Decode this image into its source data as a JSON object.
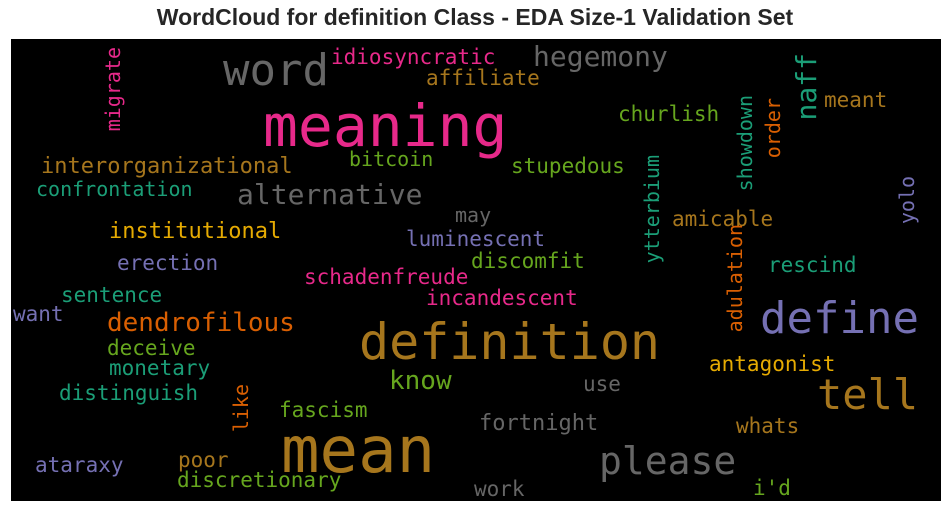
{
  "chart_data": {
    "type": "wordcloud",
    "title": "WordCloud for definition Class - EDA Size-1 Validation Set",
    "background": "#000000",
    "palette": [
      "#e7298a",
      "#a6761d",
      "#666666",
      "#7570b3",
      "#1b9e77",
      "#66a61e",
      "#e6ab02",
      "#d95f02"
    ],
    "words": [
      {
        "text": "meaning",
        "color": "#e7298a",
        "orientation": "horizontal"
      },
      {
        "text": "mean",
        "color": "#a6761d",
        "orientation": "horizontal"
      },
      {
        "text": "definition",
        "color": "#a6761d",
        "orientation": "horizontal"
      },
      {
        "text": "word",
        "color": "#666666",
        "orientation": "horizontal"
      },
      {
        "text": "define",
        "color": "#7570b3",
        "orientation": "horizontal"
      },
      {
        "text": "tell",
        "color": "#a6761d",
        "orientation": "horizontal"
      },
      {
        "text": "please",
        "color": "#666666",
        "orientation": "horizontal"
      },
      {
        "text": "hegemony",
        "color": "#666666",
        "orientation": "horizontal"
      },
      {
        "text": "alternative",
        "color": "#666666",
        "orientation": "horizontal"
      },
      {
        "text": "dendrofilous",
        "color": "#d95f02",
        "orientation": "horizontal"
      },
      {
        "text": "know",
        "color": "#66a61e",
        "orientation": "horizontal"
      },
      {
        "text": "naff",
        "color": "#1b9e77",
        "orientation": "vertical"
      },
      {
        "text": "idiosyncratic",
        "color": "#e7298a",
        "orientation": "horizontal"
      },
      {
        "text": "affiliate",
        "color": "#a6761d",
        "orientation": "horizontal"
      },
      {
        "text": "migrate",
        "color": "#e7298a",
        "orientation": "vertical"
      },
      {
        "text": "churlish",
        "color": "#66a61e",
        "orientation": "horizontal"
      },
      {
        "text": "showdown",
        "color": "#1b9e77",
        "orientation": "vertical"
      },
      {
        "text": "meant",
        "color": "#a6761d",
        "orientation": "horizontal"
      },
      {
        "text": "order",
        "color": "#d95f02",
        "orientation": "vertical"
      },
      {
        "text": "interorganizational",
        "color": "#a6761d",
        "orientation": "horizontal"
      },
      {
        "text": "bitcoin",
        "color": "#66a61e",
        "orientation": "horizontal"
      },
      {
        "text": "stupedous",
        "color": "#66a61e",
        "orientation": "horizontal"
      },
      {
        "text": "confrontation",
        "color": "#1b9e77",
        "orientation": "horizontal"
      },
      {
        "text": "ytterbium",
        "color": "#1b9e77",
        "orientation": "vertical"
      },
      {
        "text": "yolo",
        "color": "#7570b3",
        "orientation": "vertical"
      },
      {
        "text": "may",
        "color": "#666666",
        "orientation": "horizontal"
      },
      {
        "text": "amicable",
        "color": "#a6761d",
        "orientation": "horizontal"
      },
      {
        "text": "institutional",
        "color": "#e6ab02",
        "orientation": "horizontal"
      },
      {
        "text": "luminescent",
        "color": "#7570b3",
        "orientation": "horizontal"
      },
      {
        "text": "adulation",
        "color": "#d95f02",
        "orientation": "vertical"
      },
      {
        "text": "erection",
        "color": "#7570b3",
        "orientation": "horizontal"
      },
      {
        "text": "discomfit",
        "color": "#66a61e",
        "orientation": "horizontal"
      },
      {
        "text": "rescind",
        "color": "#1b9e77",
        "orientation": "horizontal"
      },
      {
        "text": "schadenfreude",
        "color": "#e7298a",
        "orientation": "horizontal"
      },
      {
        "text": "sentence",
        "color": "#1b9e77",
        "orientation": "horizontal"
      },
      {
        "text": "incandescent",
        "color": "#e7298a",
        "orientation": "horizontal"
      },
      {
        "text": "want",
        "color": "#7570b3",
        "orientation": "horizontal"
      },
      {
        "text": "deceive",
        "color": "#66a61e",
        "orientation": "horizontal"
      },
      {
        "text": "antagonist",
        "color": "#e6ab02",
        "orientation": "horizontal"
      },
      {
        "text": "monetary",
        "color": "#1b9e77",
        "orientation": "horizontal"
      },
      {
        "text": "use",
        "color": "#666666",
        "orientation": "horizontal"
      },
      {
        "text": "distinguish",
        "color": "#1b9e77",
        "orientation": "horizontal"
      },
      {
        "text": "like",
        "color": "#d95f02",
        "orientation": "vertical"
      },
      {
        "text": "fascism",
        "color": "#66a61e",
        "orientation": "horizontal"
      },
      {
        "text": "fortnight",
        "color": "#666666",
        "orientation": "horizontal"
      },
      {
        "text": "whats",
        "color": "#a6761d",
        "orientation": "horizontal"
      },
      {
        "text": "ataraxy",
        "color": "#7570b3",
        "orientation": "horizontal"
      },
      {
        "text": "poor",
        "color": "#a6761d",
        "orientation": "horizontal"
      },
      {
        "text": "discretionary",
        "color": "#66a61e",
        "orientation": "horizontal"
      },
      {
        "text": "work",
        "color": "#666666",
        "orientation": "horizontal"
      },
      {
        "text": "i'd",
        "color": "#66a61e",
        "orientation": "horizontal"
      }
    ]
  }
}
